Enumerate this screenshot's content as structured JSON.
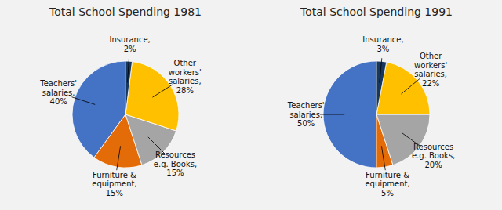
{
  "chart_data": [
    {
      "type": "pie",
      "title": "Total School Spending 1981",
      "categories": [
        "Teachers'\nsalaries,\n40%",
        "Furniture &\nequipment,\n15%",
        "Resources\ne.g. Books,\n15%",
        "Other\nworkers'\nsalaries,\n28%",
        "Insurance,\n2%"
      ],
      "values": [
        40,
        15,
        15,
        28,
        2
      ],
      "colors": [
        "#4472C4",
        "#E36C09",
        "#A5A5A5",
        "#FFC000",
        "#17375E"
      ]
    },
    {
      "type": "pie",
      "title": "Total School Spending 1991",
      "categories": [
        "Teachers'\nsalaries,\n50%",
        "Furniture &\nequipment,\n5%",
        "Resources\ne.g. Books,\n20%",
        "Other\nworkers'\nsalaries,\n22%",
        "Insurance,\n3%"
      ],
      "values": [
        50,
        5,
        20,
        22,
        3
      ],
      "colors": [
        "#4472C4",
        "#E36C09",
        "#A5A5A5",
        "#FFC000",
        "#17375E"
      ]
    }
  ]
}
